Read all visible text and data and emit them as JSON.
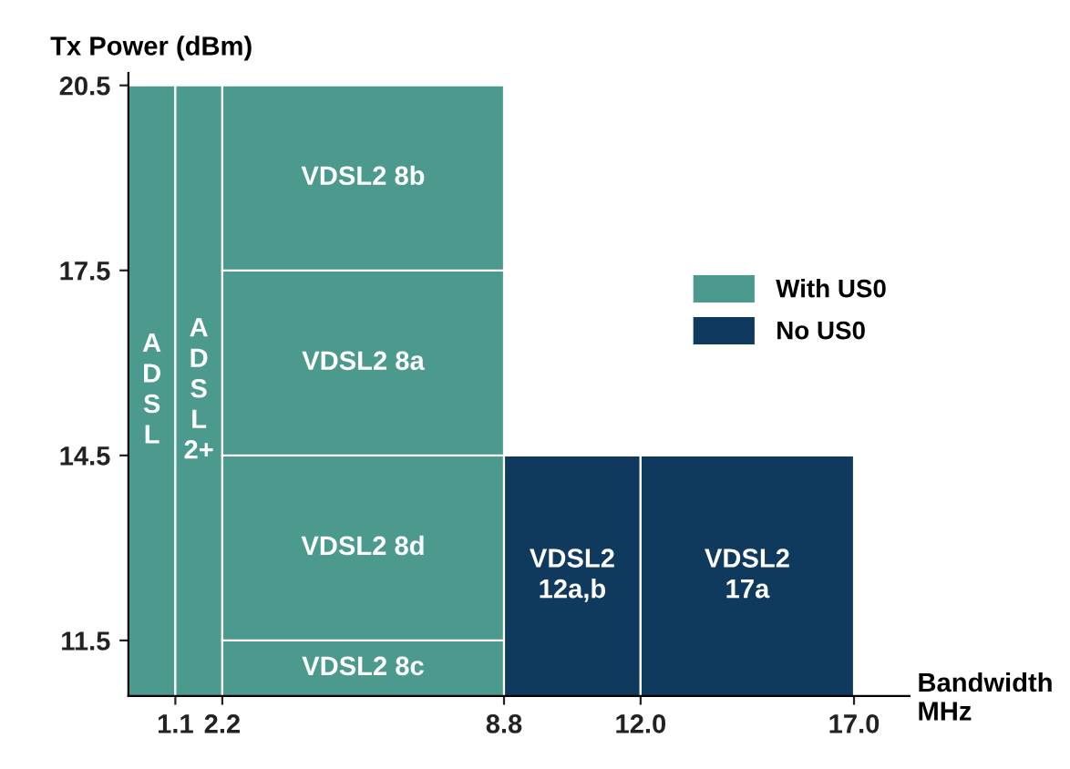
{
  "chart_data": {
    "type": "bar",
    "ylabel": "Tx Power (dBm)",
    "xlabel": "Bandwidth\nMHz",
    "series": [
      {
        "name": "With US0",
        "color": "#4b9a8d",
        "x": [
          0.55,
          1.65,
          5.5
        ],
        "values": [
          20.5,
          20.5,
          11.5
        ]
      },
      {
        "color": "#4b9a8d",
        "x": [
          5.5
        ],
        "base": [
          11.5
        ],
        "values": [
          3
        ]
      },
      {
        "color": "#4b9a8d",
        "x": [
          5.5
        ],
        "base": [
          14.5
        ],
        "values": [
          3
        ]
      },
      {
        "color": "#4b9a8d",
        "x": [
          5.5
        ],
        "base": [
          17.5
        ],
        "values": [
          3
        ]
      },
      {
        "name": "No US0",
        "color": "#0f3a5e",
        "x": [
          10.4,
          14.5
        ],
        "values": [
          14.5,
          14.5
        ]
      }
    ],
    "annotations": [
      "A\nD\nS\nL",
      "A\nD\nS\nL\n2+",
      "VDSL2 8c",
      "VDSL2 8d",
      "VDSL2 8a",
      "VDSL2 8b",
      "VDSL2\n12a,b",
      "VDSL2\n17a"
    ],
    "xlim": [
      0,
      18.3
    ],
    "ylim": [
      10.6,
      20.7
    ],
    "xticks": [
      1.1,
      2.2,
      8.8,
      {
        "value": 12,
        "label": "12.0"
      },
      {
        "value": 17,
        "label": "17.0"
      }
    ],
    "yticks": [
      11.5,
      14.5,
      17.5,
      20.5
    ],
    "legend": "right",
    "grid": false
  }
}
